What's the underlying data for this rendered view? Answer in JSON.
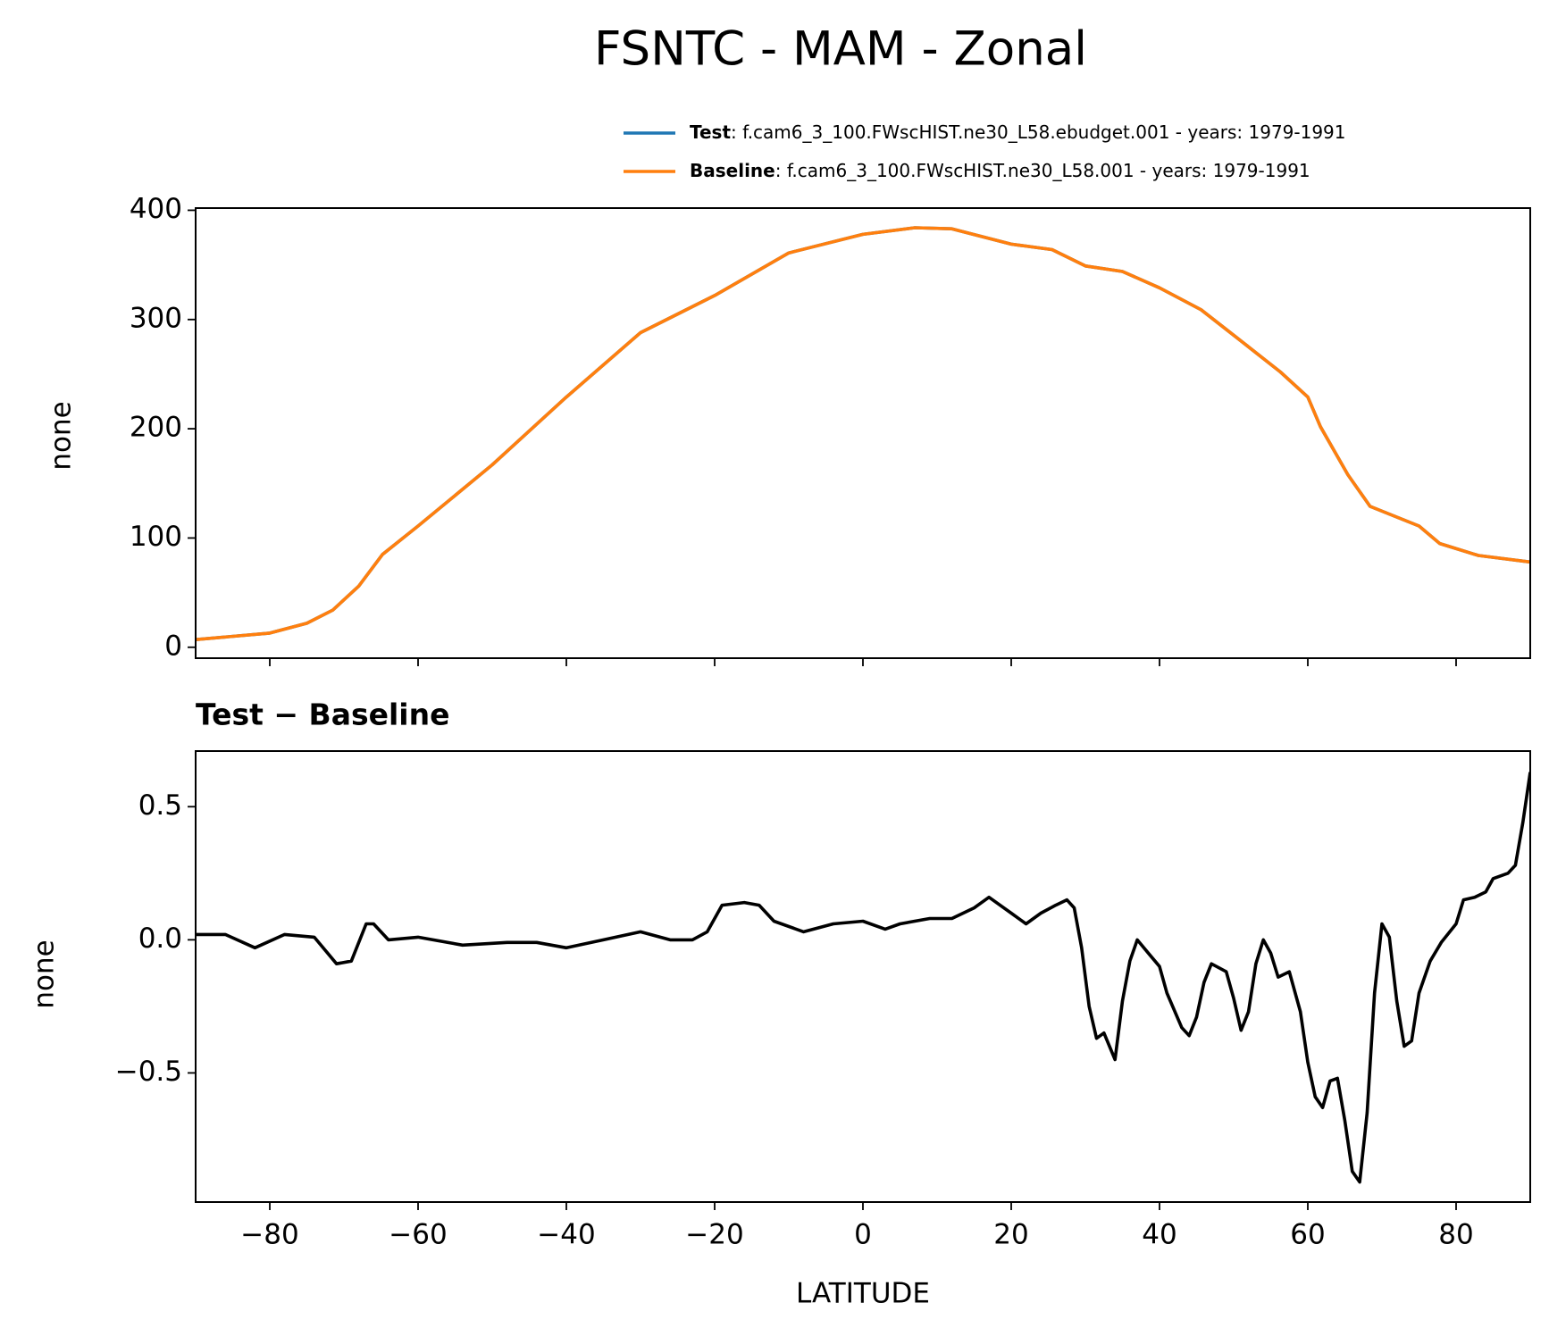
{
  "chart_data": [
    {
      "type": "line",
      "title": "FSNTC - MAM - Zonal",
      "ylabel": "none",
      "x": [
        -90,
        -80,
        -75,
        -71.5,
        -68,
        -64.8,
        -60,
        -50,
        -40,
        -30,
        -20,
        -10,
        0,
        7,
        12,
        20,
        25.5,
        30,
        35,
        40,
        45.6,
        50.3,
        56.3,
        60,
        61.7,
        65.4,
        68.4,
        75,
        77.8,
        83,
        90
      ],
      "series": [
        {
          "name": "Test",
          "label": ": f.cam6_3_100.FWscHIST.ne30_L58.ebudget.001 - years: 1979-1991",
          "color": "#1f77b4",
          "values": [
            7,
            13,
            22,
            34,
            56,
            85,
            111,
            167,
            229,
            288,
            322,
            361,
            378,
            384,
            383,
            369,
            364,
            349,
            344,
            329,
            309,
            284,
            252,
            229,
            202,
            158,
            129,
            111,
            95,
            84,
            78
          ]
        },
        {
          "name": "Baseline",
          "label": ": f.cam6_3_100.FWscHIST.ne30_L58.001 - years: 1979-1991",
          "color": "#ff7f0e",
          "values": [
            7,
            13,
            22,
            34,
            56,
            85,
            111,
            167,
            229,
            288,
            322,
            361,
            378,
            384,
            383,
            369,
            364,
            349,
            344,
            329,
            309,
            284,
            252,
            229,
            202,
            158,
            129,
            111,
            95,
            84,
            78
          ]
        }
      ],
      "xlim": [
        -90,
        90
      ],
      "xticks": [
        -80,
        -60,
        -40,
        -20,
        0,
        20,
        40,
        60,
        80
      ],
      "ylim": [
        -10,
        402
      ],
      "yticks": [
        0,
        100,
        200,
        300,
        400
      ]
    },
    {
      "type": "line",
      "subtitle": "Test − Baseline",
      "xlabel": "LATITUDE",
      "ylabel": "none",
      "x": [
        -90,
        -86,
        -82,
        -78,
        -74,
        -71,
        -69,
        -67,
        -66,
        -64,
        -60,
        -54,
        -48,
        -44,
        -40,
        -35,
        -30,
        -26,
        -23,
        -21,
        -19,
        -16,
        -14,
        -12,
        -8,
        -4,
        0,
        3,
        5,
        9,
        12,
        15,
        17,
        20,
        22,
        24,
        26,
        27.5,
        28.5,
        29.5,
        30.5,
        31.5,
        32.5,
        34,
        35,
        36,
        37,
        38.5,
        40,
        41,
        43,
        44,
        45,
        46,
        47,
        49,
        50,
        51,
        52,
        53,
        54,
        55,
        56,
        57.5,
        59,
        60,
        61,
        62,
        63,
        64,
        65,
        66,
        67,
        68,
        69,
        70,
        71,
        72,
        73,
        74,
        75,
        76.5,
        78,
        80,
        81,
        82.5,
        84,
        85,
        87,
        88,
        89,
        90
      ],
      "series": [
        {
          "color": "#000000",
          "values": [
            0.02,
            0.02,
            -0.03,
            0.02,
            0.01,
            -0.09,
            -0.08,
            0.06,
            0.06,
            0.0,
            0.01,
            -0.02,
            -0.01,
            -0.01,
            -0.03,
            0.0,
            0.03,
            0.0,
            0.0,
            0.03,
            0.13,
            0.14,
            0.13,
            0.07,
            0.03,
            0.06,
            0.07,
            0.04,
            0.06,
            0.08,
            0.08,
            0.12,
            0.16,
            0.1,
            0.06,
            0.1,
            0.13,
            0.15,
            0.12,
            -0.03,
            -0.25,
            -0.37,
            -0.35,
            -0.45,
            -0.23,
            -0.08,
            0.0,
            -0.05,
            -0.1,
            -0.2,
            -0.33,
            -0.36,
            -0.29,
            -0.16,
            -0.09,
            -0.12,
            -0.22,
            -0.34,
            -0.27,
            -0.09,
            0.0,
            -0.05,
            -0.14,
            -0.12,
            -0.27,
            -0.46,
            -0.59,
            -0.63,
            -0.53,
            -0.52,
            -0.68,
            -0.87,
            -0.91,
            -0.65,
            -0.2,
            0.06,
            0.01,
            -0.23,
            -0.4,
            -0.38,
            -0.2,
            -0.08,
            -0.01,
            0.06,
            0.15,
            0.16,
            0.18,
            0.23,
            0.25,
            0.28,
            0.44,
            0.63
          ]
        }
      ],
      "xlim": [
        -90,
        90
      ],
      "xticks": [
        {
          "value": -80,
          "label": "−80"
        },
        {
          "value": -60,
          "label": "−60"
        },
        {
          "value": -40,
          "label": "−40"
        },
        {
          "value": -20,
          "label": "−20"
        },
        0,
        20,
        40,
        60,
        80
      ],
      "ylim": [
        -0.985,
        0.709
      ],
      "yticks": [
        {
          "value": -0.5,
          "label": "−0.5"
        },
        {
          "value": 0,
          "label": "0.0"
        },
        0.5
      ]
    }
  ]
}
